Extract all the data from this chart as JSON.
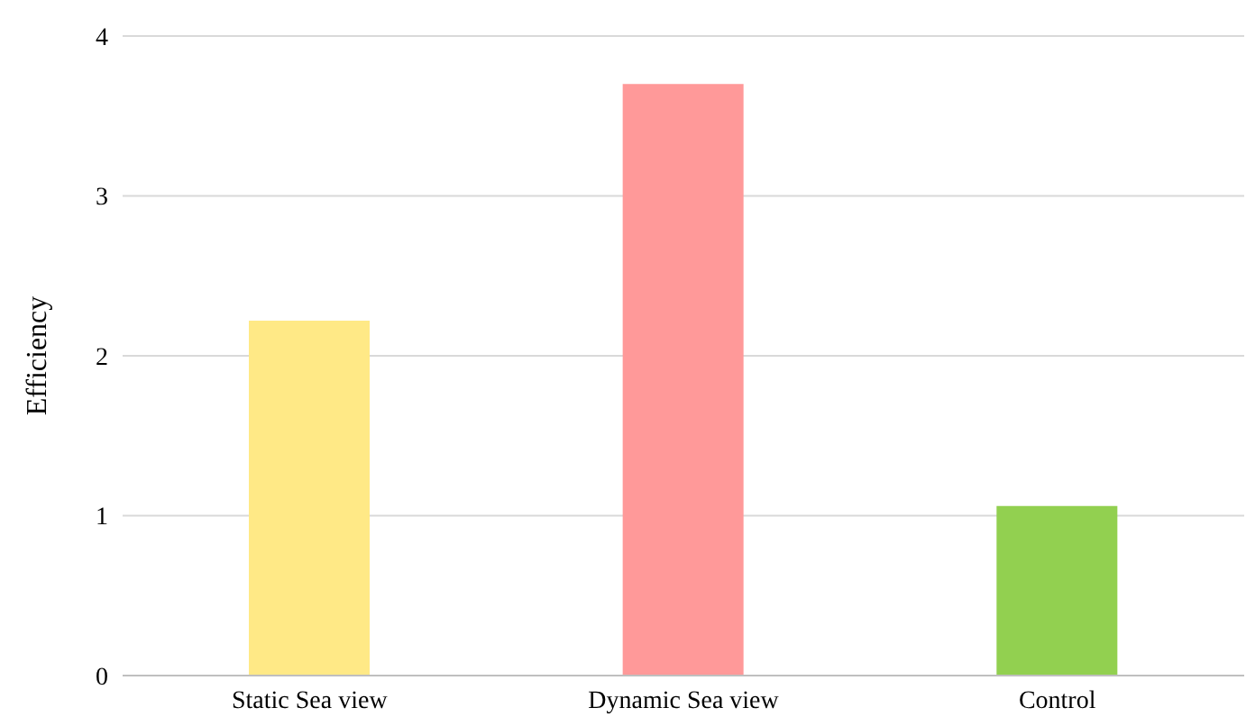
{
  "chart_data": {
    "type": "bar",
    "ylabel": "Efficiency",
    "categories": [
      "Static Sea view",
      "Dynamic Sea view",
      "Control"
    ],
    "values": [
      2.22,
      3.7,
      1.06
    ],
    "colors": [
      "#ffe986",
      "#ff9999",
      "#92d050"
    ],
    "ylim": [
      0,
      4
    ],
    "yticks": [
      0,
      1,
      2,
      3,
      4
    ],
    "grid": "y",
    "legend": false
  }
}
